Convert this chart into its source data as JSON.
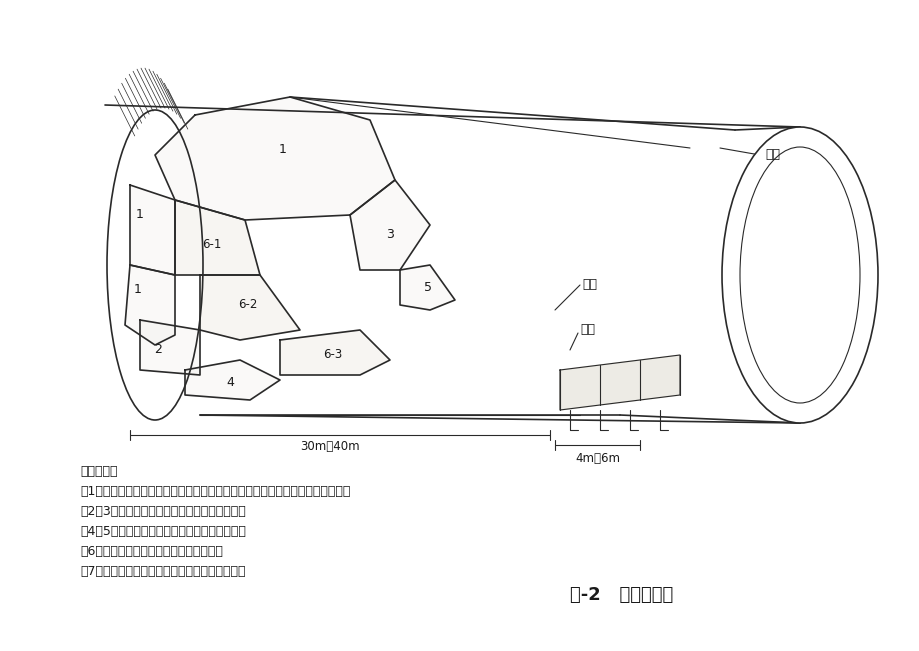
{
  "title": "图-2   开挖透视图",
  "bg_color": "#f5f5f0",
  "line_color": "#2a2a2a",
  "text_color": "#1a1a1a",
  "steps_header": "施工步骤：",
  "steps": [
    "第1步：施作超前支护后，开挖拱部弧形导坑，预留核心土，施作拱部初期支护；",
    "第2、3步：开挖左右侧中台阶并施作初期支护；",
    "第4、5步：开挖左右侧下台阶并施作初期支护；",
    "第6步：分别开挖上、中、下台阶核心土；",
    "第7步：开挖隧底并施作仰拱初期支护封闭成环。"
  ],
  "labels": {
    "1_top": "1",
    "1_left_upper": "1",
    "1_left_lower": "1",
    "6_1": "6-1",
    "3": "3",
    "2": "2",
    "6_2": "6-2",
    "5": "5",
    "4": "4",
    "6_3": "6-3",
    "lining": "衬砌",
    "inverted_arch": "仰拱",
    "trestle": "栈桥",
    "dim1": "30m～40m",
    "dim2": "4m～6m"
  }
}
